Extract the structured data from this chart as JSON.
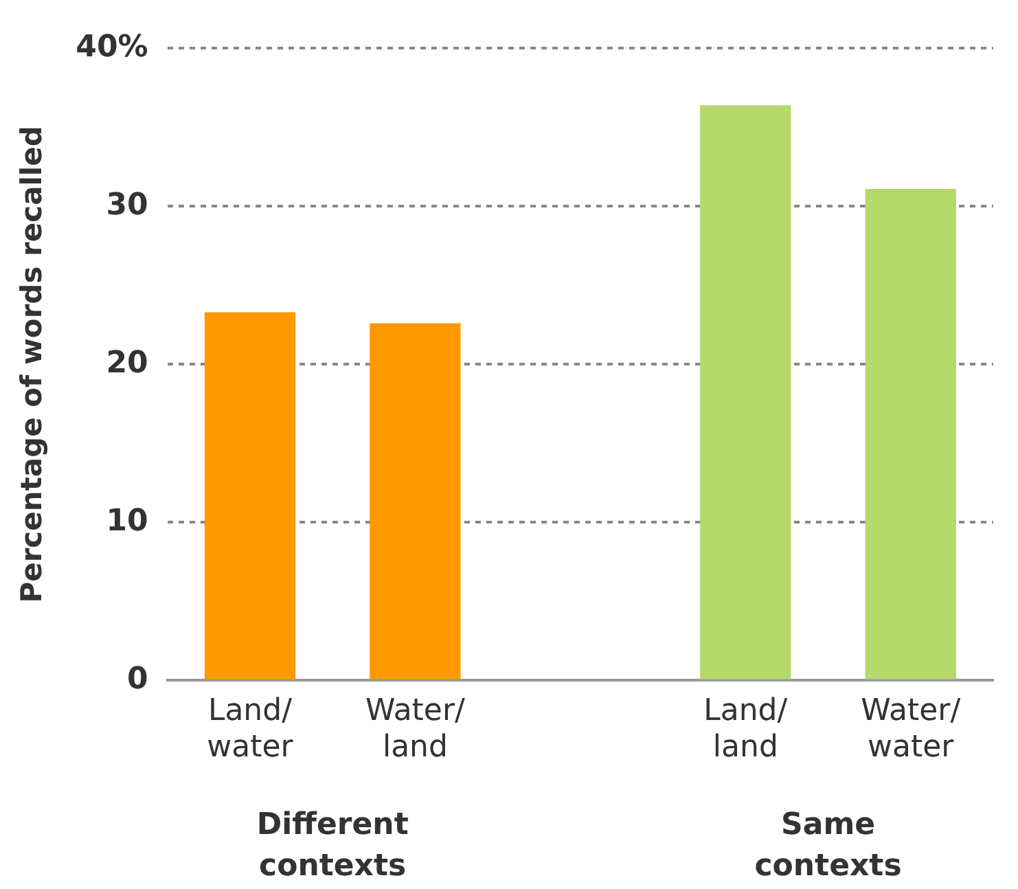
{
  "chart_data": {
    "type": "bar",
    "ylabel": "Percentage of words recalled",
    "categories": [
      "Land/ water",
      "Water/ land",
      null,
      "Land/ land",
      "Water/ water"
    ],
    "values": [
      23.3,
      22.6,
      null,
      36.4,
      31.1
    ],
    "colors": [
      "#ff9900",
      "#ff9900",
      null,
      "#b5d96a",
      "#b5d96a"
    ],
    "ylim": [
      0,
      40
    ],
    "yticks": [
      0,
      10,
      20,
      30,
      {
        "value": 40,
        "label": "40%"
      }
    ],
    "grid": "y",
    "annotations": [
      "Different contexts",
      "Same contexts"
    ]
  }
}
